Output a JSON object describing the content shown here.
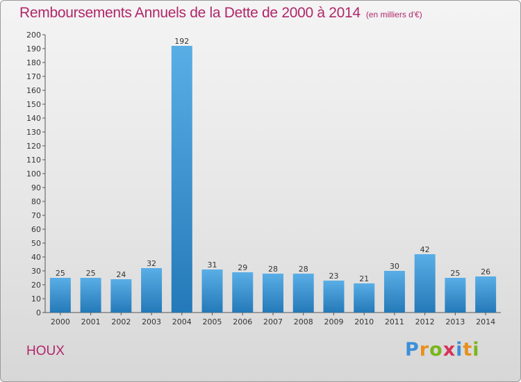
{
  "header": {
    "title": "Remboursements Annuels de la Dette de 2000 à 2014",
    "subtitle": "(en milliers d'€)"
  },
  "footer": {
    "commune": "HOUX",
    "brand": "Proxiti",
    "brand_letters": [
      "P",
      "r",
      "o",
      "x",
      "i",
      "t",
      "i"
    ],
    "brand_colors": [
      "#3b8fd9",
      "#e8901e",
      "#7ab51d",
      "#d6325a",
      "#3b8fd9",
      "#e8901e",
      "#7ab51d"
    ]
  },
  "chart_data": {
    "type": "bar",
    "title": "Remboursements Annuels de la Dette de 2000 à 2014",
    "subtitle": "(en milliers d'€)",
    "categories": [
      "2000",
      "2001",
      "2002",
      "2003",
      "2004",
      "2005",
      "2006",
      "2007",
      "2008",
      "2009",
      "2010",
      "2011",
      "2012",
      "2013",
      "2014"
    ],
    "values": [
      25,
      25,
      24,
      32,
      192,
      31,
      29,
      28,
      28,
      23,
      21,
      30,
      42,
      25,
      26
    ],
    "ylim": [
      0,
      200
    ],
    "ytick_step": 10,
    "grid": false,
    "bar_color_top": "#5aaee6",
    "bar_color_bottom": "#2479b8",
    "label_color": "#333333"
  }
}
